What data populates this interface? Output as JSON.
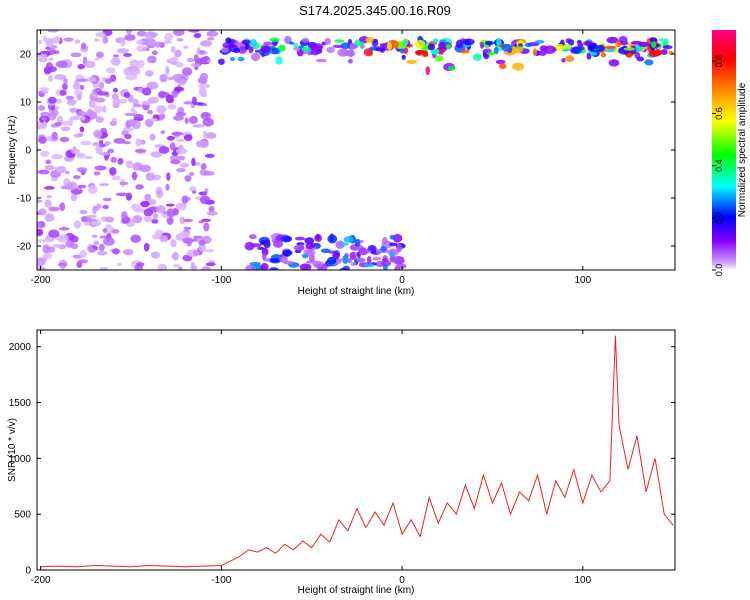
{
  "title": "S174.2025.345.00.16.R09",
  "chart_data": [
    {
      "type": "heatmap",
      "xlabel": "Height of straight line (km)",
      "ylabel": "Frequency (Hz)",
      "xlim": [
        -202,
        151
      ],
      "ylim": [
        -25,
        25
      ],
      "xticks": [
        -200,
        -100,
        0,
        100
      ],
      "yticks": [
        -20,
        -10,
        0,
        10,
        20
      ],
      "colorbar": {
        "label": "Normalized spectral amplitude",
        "range": [
          0.0,
          0.92
        ],
        "ticks": [
          "0.0",
          "0.2",
          "0.4",
          "0.6",
          "0.8"
        ],
        "colors": [
          "#ffffff",
          "#8800ff",
          "#0000ff",
          "#00ffff",
          "#00ff00",
          "#ffff00",
          "#ff8800",
          "#ff0000",
          "#ff0088"
        ]
      },
      "features": [
        {
          "name": "",
          "x_range": [
            -202,
            -105
          ],
          "y_range": [
            -25,
            25
          ],
          "amplitude_range": [
            0.02,
            0.1
          ]
        },
        {
          "name": "",
          "x_range": [
            -100,
            150
          ],
          "y_range": [
            20,
            25
          ],
          "amplitude_range": [
            0.1,
            0.92
          ]
        },
        {
          "name": "",
          "x_range": [
            -85,
            0
          ],
          "y_range": [
            -25,
            -18
          ],
          "amplitude_range": [
            0.05,
            0.3
          ]
        }
      ]
    },
    {
      "type": "line",
      "xlabel": "Height of straight line (km)",
      "ylabel": "SNR (10 * v/v)",
      "xlim": [
        -202,
        151
      ],
      "ylim": [
        0,
        2150
      ],
      "xticks": [
        -200,
        -100,
        0,
        100
      ],
      "yticks": [
        0,
        500,
        1000,
        1500,
        2000
      ],
      "color": "#ee2222",
      "series": [
        {
          "name": "",
          "x": [
            -200,
            -190,
            -180,
            -170,
            -160,
            -150,
            -140,
            -130,
            -120,
            -110,
            -100,
            -95,
            -90,
            -85,
            -80,
            -75,
            -70,
            -65,
            -60,
            -55,
            -50,
            -45,
            -40,
            -35,
            -30,
            -25,
            -20,
            -15,
            -10,
            -5,
            0,
            5,
            10,
            15,
            20,
            25,
            30,
            35,
            40,
            45,
            50,
            55,
            60,
            65,
            70,
            75,
            80,
            85,
            90,
            95,
            100,
            105,
            110,
            115,
            118,
            120,
            125,
            130,
            135,
            140,
            145,
            150
          ],
          "y": [
            30,
            35,
            30,
            40,
            35,
            30,
            40,
            35,
            30,
            35,
            40,
            80,
            120,
            180,
            160,
            200,
            150,
            230,
            180,
            260,
            200,
            320,
            250,
            450,
            350,
            550,
            380,
            520,
            400,
            600,
            320,
            450,
            300,
            650,
            420,
            600,
            500,
            760,
            550,
            850,
            600,
            780,
            500,
            700,
            620,
            850,
            500,
            800,
            650,
            900,
            600,
            850,
            700,
            800,
            2100,
            1300,
            900,
            1200,
            700,
            1000,
            500,
            400
          ]
        }
      ]
    }
  ]
}
